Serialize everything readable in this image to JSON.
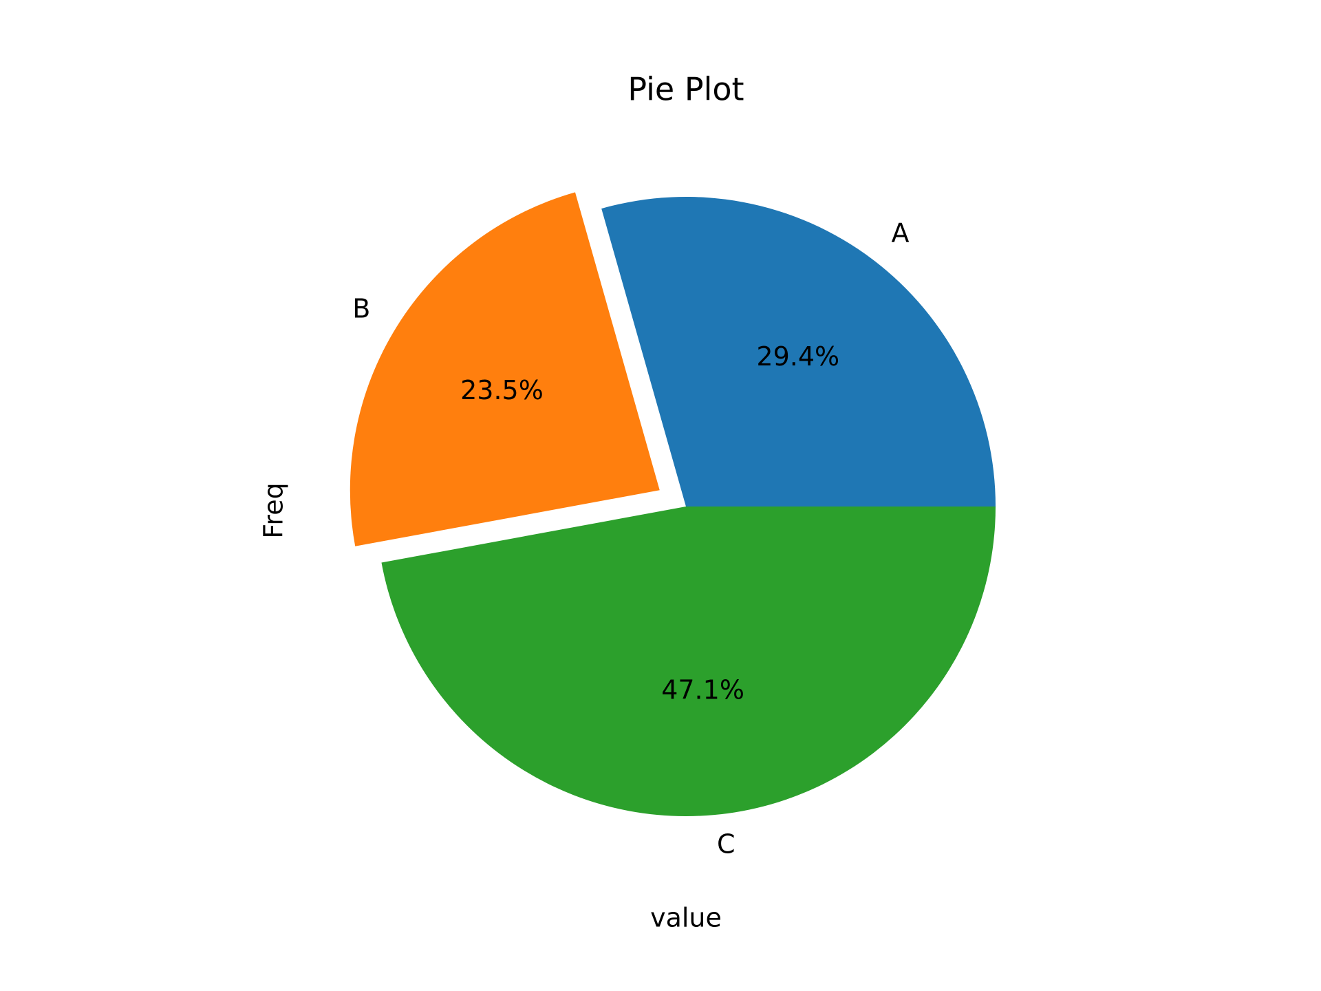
{
  "chart_data": {
    "type": "pie",
    "title": "Pie Plot",
    "x_label": "value",
    "y_label": "Freq",
    "categories": [
      "A",
      "B",
      "C"
    ],
    "values": [
      29.4,
      23.5,
      47.1
    ],
    "value_labels": [
      "29.4%",
      "23.5%",
      "47.1%"
    ],
    "colors": [
      "#1f77b4",
      "#ff7f0e",
      "#2ca02c"
    ],
    "explode": [
      0,
      0.1,
      0
    ],
    "start_angle": 0
  }
}
